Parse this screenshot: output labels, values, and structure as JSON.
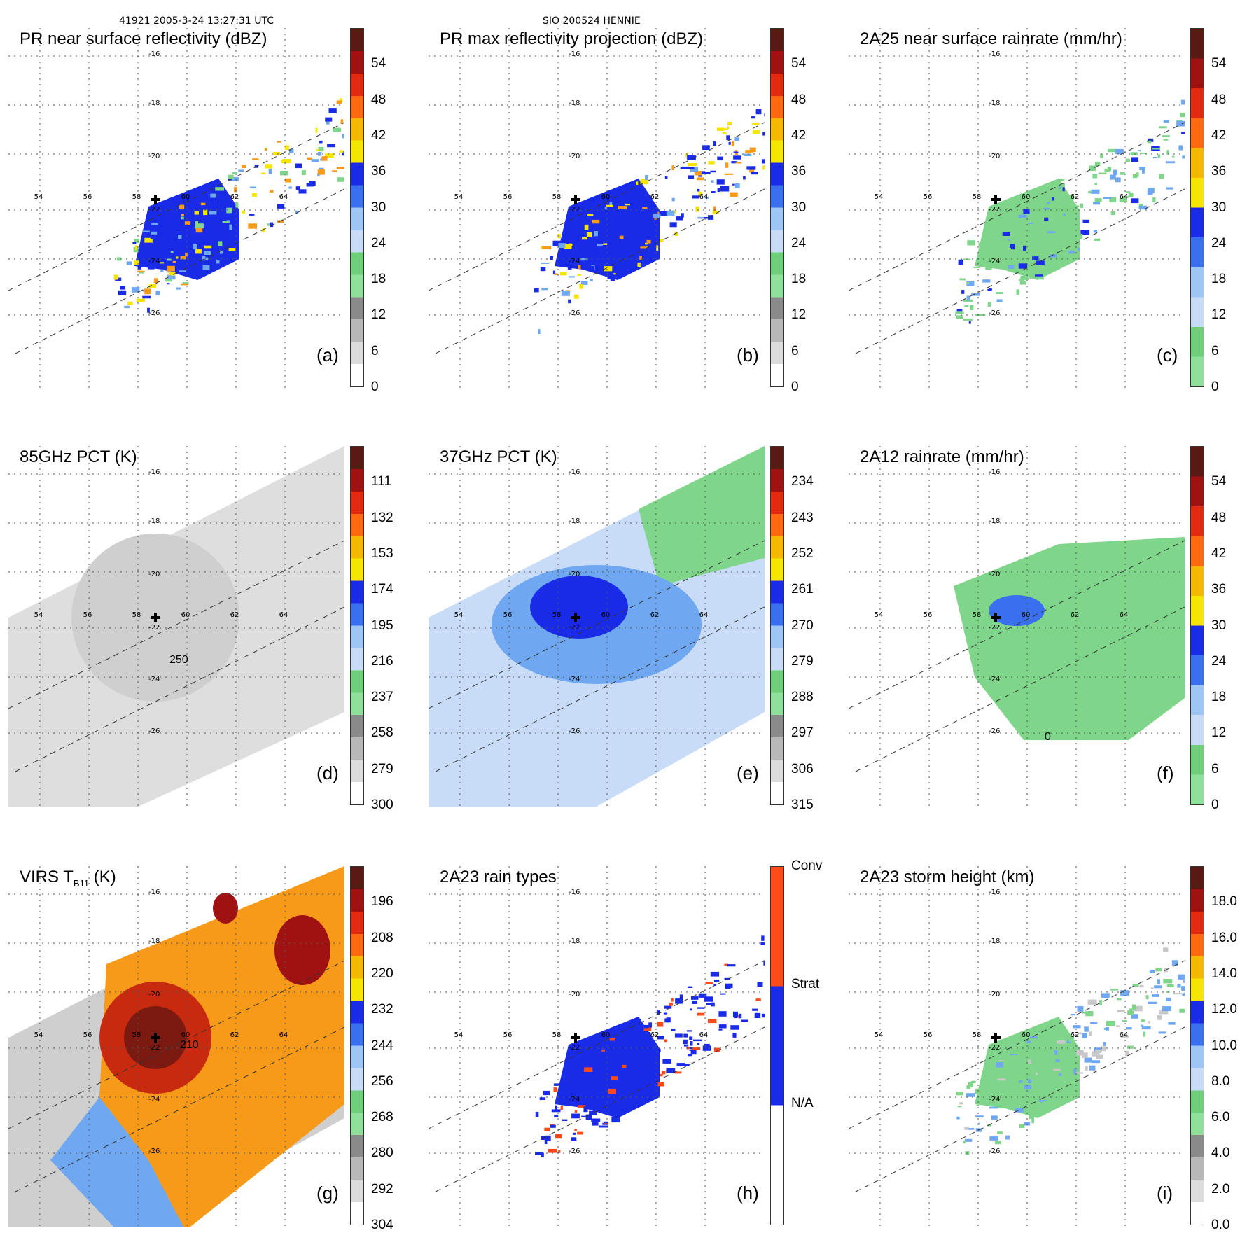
{
  "header": {
    "left": "41921 2005-3-24 13:27:31 UTC",
    "center": "SIO 200524 HENNIE"
  },
  "lon_labels": [
    "54",
    "56",
    "58",
    "60",
    "62",
    "64"
  ],
  "lat_labels": [
    "-16",
    "-18",
    "-20",
    "-22",
    "-24",
    "-26"
  ],
  "panels": [
    {
      "title": "PR near surface reflectivity (dBZ)",
      "label": "(a)",
      "ticks": [
        "54",
        "48",
        "42",
        "36",
        "30",
        "24",
        "18",
        "12",
        "6",
        "0"
      ]
    },
    {
      "title": "PR max reflectivity projection (dBZ)",
      "label": "(b)",
      "ticks": [
        "54",
        "48",
        "42",
        "36",
        "30",
        "24",
        "18",
        "12",
        "6",
        "0"
      ]
    },
    {
      "title": "2A25 near surface rainrate (mm/hr)",
      "label": "(c)",
      "ticks": [
        "54",
        "48",
        "42",
        "36",
        "30",
        "24",
        "18",
        "12",
        "6",
        "0"
      ]
    },
    {
      "title": "85GHz PCT (K)",
      "label": "(d)",
      "ticks": [
        "111",
        "132",
        "153",
        "174",
        "195",
        "216",
        "237",
        "258",
        "279",
        "300"
      ]
    },
    {
      "title": "37GHz PCT (K)",
      "label": "(e)",
      "ticks": [
        "234",
        "243",
        "252",
        "261",
        "270",
        "279",
        "288",
        "297",
        "306",
        "315"
      ]
    },
    {
      "title": "2A12 rainrate (mm/hr)",
      "label": "(f)",
      "ticks": [
        "54",
        "48",
        "42",
        "36",
        "30",
        "24",
        "18",
        "12",
        "6",
        "0"
      ]
    },
    {
      "title_main": "VIRS T",
      "title_sub": "B11",
      "title_tail": " (K)",
      "label": "(g)",
      "ticks": [
        "196",
        "208",
        "220",
        "232",
        "244",
        "256",
        "268",
        "280",
        "292",
        "304"
      ]
    },
    {
      "title": "2A23 rain types",
      "label": "(h)",
      "ticks": [
        "Conv",
        "Strat",
        "N/A"
      ]
    },
    {
      "title": "2A23 storm height (km)",
      "label": "(i)",
      "ticks": [
        "18.0",
        "16.0",
        "14.0",
        "12.0",
        "10.0",
        "8.0",
        "6.0",
        "4.0",
        "2.0",
        "0.0"
      ]
    }
  ],
  "contour_labels": {
    "d": "250",
    "f": "0",
    "g": "210"
  },
  "colors": {
    "blue": "#1a2be8",
    "lightblue": "#6fa8f0",
    "green": "#7fd68a",
    "yellow": "#f5e600",
    "orange": "#f79a1a",
    "red": "#e12a10",
    "darkred": "#7a1a10",
    "gray": "#c8c8c8",
    "conv": "#ff4a1a"
  }
}
